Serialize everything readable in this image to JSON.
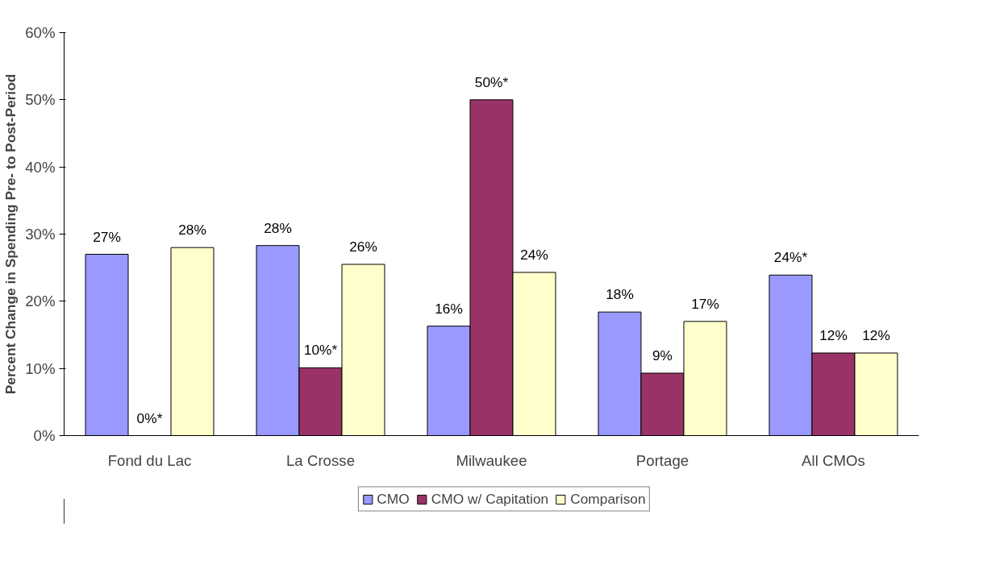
{
  "chart_data": {
    "type": "bar",
    "ylabel": "Percent Change in Spending Pre- to Post-Period",
    "categories": [
      "Fond du Lac",
      "La Crosse",
      "Milwaukee",
      "Portage",
      "All CMOs"
    ],
    "series": [
      {
        "name": "CMO",
        "color": "#9999ff",
        "values": [
          27,
          28.3,
          16.3,
          18.4,
          23.9
        ],
        "value_labels": [
          "27%",
          "28%",
          "16%",
          "18%",
          "24%*"
        ]
      },
      {
        "name": "CMO w/ Capitation",
        "color": "#993366",
        "values": [
          0,
          10.1,
          50,
          9.3,
          12.3
        ],
        "value_labels": [
          "0%*",
          "10%*",
          "50%*",
          "9%",
          "12%"
        ]
      },
      {
        "name": "Comparison",
        "color": "#ffffcc",
        "values": [
          28,
          25.5,
          24.3,
          17,
          12.3
        ],
        "value_labels": [
          "28%",
          "26%",
          "24%",
          "17%",
          "12%"
        ]
      }
    ],
    "ylim": [
      0,
      60
    ],
    "yticks": [
      {
        "value": 0,
        "label": "0%"
      },
      {
        "value": 10,
        "label": "10%"
      },
      {
        "value": 20,
        "label": "20%"
      },
      {
        "value": 30,
        "label": "30%"
      },
      {
        "value": 40,
        "label": "40%"
      },
      {
        "value": 50,
        "label": "50%"
      },
      {
        "value": 60,
        "label": "60%"
      }
    ],
    "grid": false,
    "legend": "bottom"
  }
}
